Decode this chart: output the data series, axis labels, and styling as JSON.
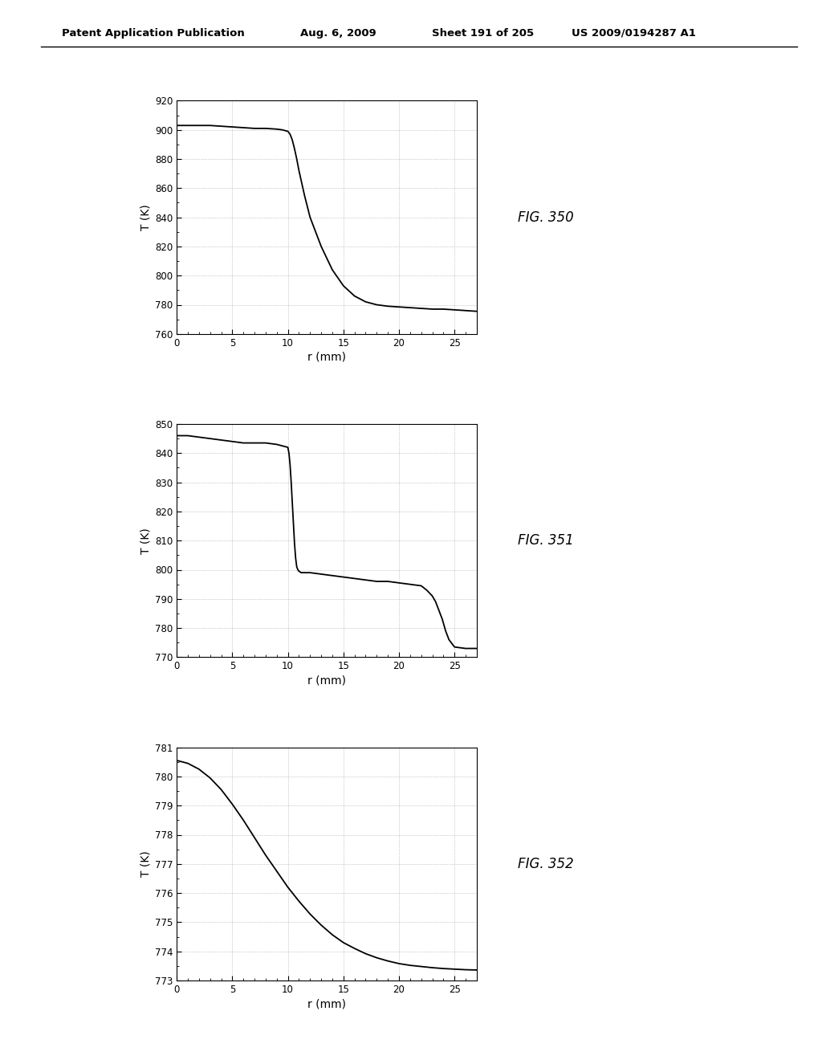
{
  "fig350": {
    "ylabel": "T (K)",
    "xlabel": "r (mm)",
    "xlim": [
      0,
      27
    ],
    "ylim": [
      760,
      920
    ],
    "yticks": [
      760,
      780,
      800,
      820,
      840,
      860,
      880,
      900,
      920
    ],
    "xticks": [
      0,
      5,
      10,
      15,
      20,
      25
    ],
    "curve_x": [
      0,
      0.5,
      1,
      2,
      3,
      4,
      5,
      6,
      7,
      8,
      9,
      9.5,
      10,
      10.2,
      10.4,
      10.6,
      10.8,
      11,
      11.5,
      12,
      13,
      14,
      15,
      16,
      17,
      18,
      19,
      20,
      21,
      22,
      23,
      24,
      25,
      26,
      27
    ],
    "curve_y": [
      903,
      903,
      903,
      903,
      903,
      902.5,
      902,
      901.5,
      901,
      901,
      900.5,
      900,
      899,
      897,
      893,
      887,
      880,
      872,
      855,
      840,
      820,
      804,
      793,
      786,
      782,
      780,
      779,
      778.5,
      778,
      777.5,
      777,
      777,
      776.5,
      776,
      775.5
    ]
  },
  "fig351": {
    "ylabel": "T (K)",
    "xlabel": "r (mm)",
    "xlim": [
      0,
      27
    ],
    "ylim": [
      770,
      850
    ],
    "yticks": [
      770,
      780,
      790,
      800,
      810,
      820,
      830,
      840,
      850
    ],
    "xticks": [
      0,
      5,
      10,
      15,
      20,
      25
    ],
    "curve_x": [
      0,
      1,
      2,
      3,
      4,
      5,
      6,
      7,
      8,
      9,
      9.5,
      10,
      10.1,
      10.2,
      10.3,
      10.4,
      10.5,
      10.6,
      10.7,
      10.8,
      10.9,
      11,
      11.2,
      11.5,
      12,
      13,
      14,
      15,
      16,
      17,
      18,
      19,
      20,
      21,
      22,
      22.5,
      23,
      23.3,
      23.6,
      23.9,
      24.2,
      24.5,
      25,
      26,
      27
    ],
    "curve_y": [
      846,
      846,
      845.5,
      845,
      844.5,
      844,
      843.5,
      843.5,
      843.5,
      843,
      842.5,
      842,
      840,
      836,
      830,
      823,
      816,
      809,
      804,
      801,
      800,
      799.5,
      799,
      799,
      799,
      798.5,
      798,
      797.5,
      797,
      796.5,
      796,
      796,
      795.5,
      795,
      794.5,
      793,
      791,
      789,
      786,
      783,
      779,
      776,
      773.5,
      773,
      773
    ]
  },
  "fig352": {
    "ylabel": "T (K)",
    "xlabel": "r (mm)",
    "xlim": [
      0,
      27
    ],
    "ylim": [
      773,
      781
    ],
    "yticks": [
      773,
      774,
      775,
      776,
      777,
      778,
      779,
      780,
      781
    ],
    "xticks": [
      0,
      5,
      10,
      15,
      20,
      25
    ],
    "curve_x": [
      0,
      1,
      2,
      3,
      4,
      5,
      6,
      7,
      8,
      9,
      10,
      11,
      12,
      13,
      14,
      15,
      16,
      17,
      18,
      19,
      20,
      21,
      22,
      23,
      24,
      25,
      26,
      27
    ],
    "curve_y": [
      780.55,
      780.45,
      780.25,
      779.95,
      779.55,
      779.05,
      778.5,
      777.9,
      777.3,
      776.75,
      776.2,
      775.72,
      775.28,
      774.9,
      774.57,
      774.3,
      774.1,
      773.92,
      773.78,
      773.67,
      773.58,
      773.52,
      773.48,
      773.44,
      773.41,
      773.39,
      773.37,
      773.36
    ]
  },
  "fig_names": [
    "FIG. 350",
    "FIG. 351",
    "FIG. 352"
  ],
  "header_text": "Patent Application Publication",
  "header_date": "Aug. 6, 2009",
  "header_sheet": "Sheet 191 of 205",
  "header_patent": "US 2009/0194287 A1",
  "background_color": "#ffffff",
  "line_color": "#000000",
  "grid_color": "#888888",
  "axis_color": "#000000",
  "text_color": "#000000"
}
